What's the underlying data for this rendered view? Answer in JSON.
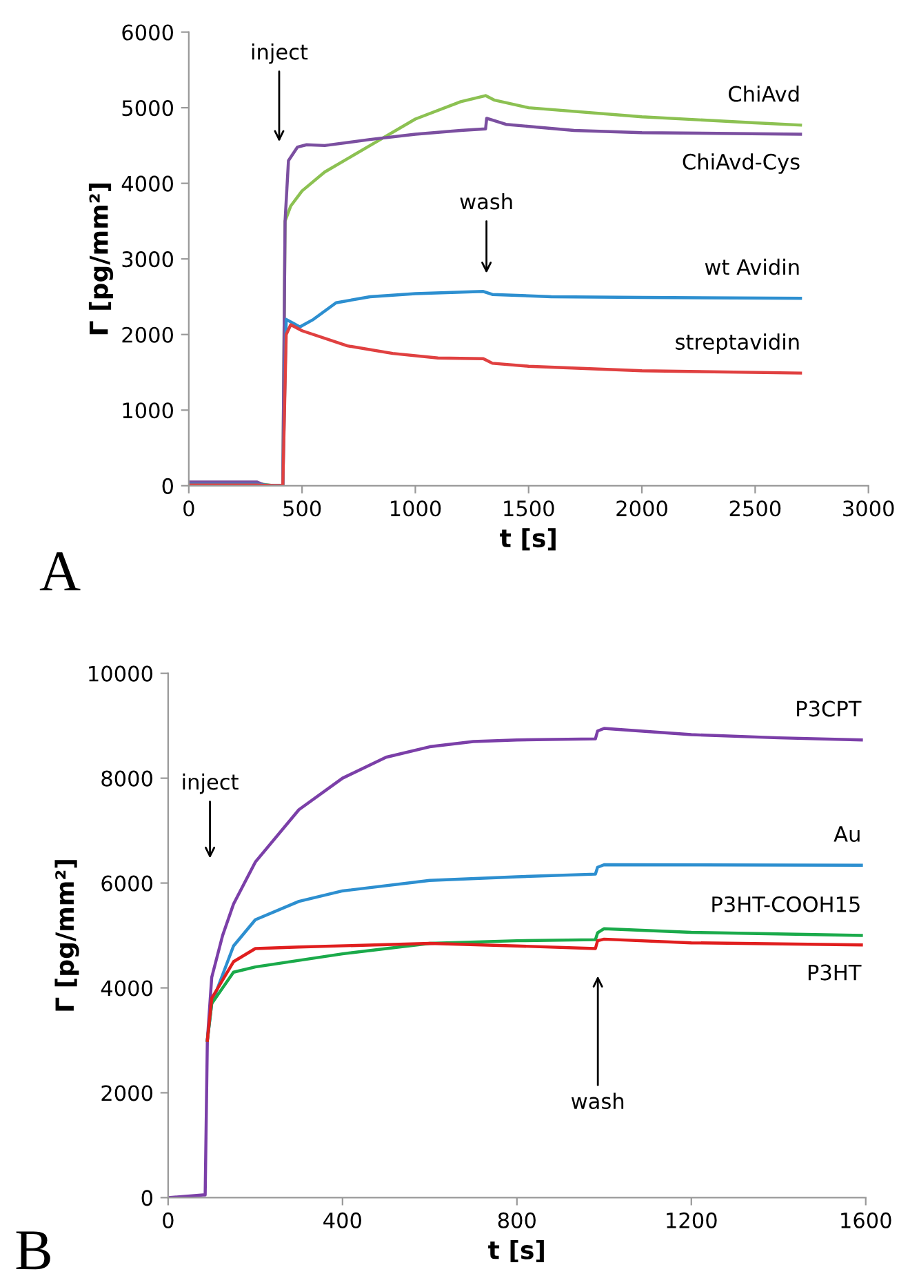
{
  "chart_data": [
    {
      "type": "line",
      "xlabel": "t [s]",
      "ylabel": "Γ [pg/mm²]",
      "xlim": [
        0,
        3000
      ],
      "ylim": [
        0,
        6000
      ],
      "xticks": [
        0,
        500,
        1000,
        1500,
        2000,
        2500,
        3000
      ],
      "yticks": [
        0,
        1000,
        2000,
        3000,
        4000,
        5000,
        6000
      ],
      "grid": false,
      "legend": false,
      "marker": "none",
      "line_style": "solid",
      "series": [
        {
          "name": "ChiAvd",
          "color": "#8cc152",
          "x": [
            0,
            300,
            380,
            415,
            425,
            450,
            500,
            600,
            800,
            1000,
            1200,
            1310,
            1350,
            1500,
            2000,
            2500,
            2700
          ],
          "values": [
            30,
            30,
            0,
            0,
            3500,
            3700,
            3900,
            4150,
            4500,
            4850,
            5080,
            5160,
            5100,
            5000,
            4880,
            4800,
            4770
          ]
        },
        {
          "name": "ChiAvd-Cys",
          "color": "#7b4fa0",
          "x": [
            0,
            300,
            340,
            415,
            425,
            440,
            480,
            520,
            600,
            800,
            1000,
            1200,
            1310,
            1315,
            1400,
            1700,
            2000,
            2700
          ],
          "values": [
            50,
            50,
            0,
            0,
            3500,
            4300,
            4480,
            4510,
            4500,
            4580,
            4650,
            4700,
            4720,
            4860,
            4780,
            4700,
            4670,
            4650
          ]
        },
        {
          "name": "wt Avidin",
          "color": "#2d8fd0",
          "x": [
            0,
            300,
            380,
            415,
            430,
            460,
            490,
            550,
            650,
            800,
            1000,
            1300,
            1340,
            1600,
            2000,
            2700
          ],
          "values": [
            20,
            20,
            0,
            0,
            2200,
            2150,
            2100,
            2200,
            2420,
            2500,
            2540,
            2570,
            2530,
            2500,
            2490,
            2480
          ]
        },
        {
          "name": "streptavidin",
          "color": "#e04040",
          "x": [
            0,
            300,
            380,
            415,
            430,
            450,
            500,
            700,
            900,
            1100,
            1300,
            1320,
            1340,
            1500,
            2000,
            2700
          ],
          "values": [
            10,
            10,
            0,
            0,
            2000,
            2130,
            2050,
            1850,
            1750,
            1690,
            1680,
            1650,
            1620,
            1580,
            1520,
            1490
          ]
        }
      ],
      "annotations": [
        "inject",
        "wash",
        "A"
      ]
    },
    {
      "type": "line",
      "xlabel": "t [s]",
      "ylabel": "Γ [pg/mm²]",
      "xlim": [
        0,
        1600
      ],
      "ylim": [
        0,
        10000
      ],
      "xticks": [
        0,
        400,
        800,
        1200,
        1600
      ],
      "yticks": [
        0,
        2000,
        4000,
        6000,
        8000,
        10000
      ],
      "grid": false,
      "legend": false,
      "marker": "none",
      "line_style": "solid",
      "series": [
        {
          "name": "P3CPT",
          "color": "#7b3fa8",
          "x": [
            0,
            80,
            85,
            90,
            100,
            125,
            150,
            200,
            300,
            400,
            500,
            600,
            700,
            800,
            980,
            985,
            1000,
            1200,
            1400,
            1590
          ],
          "values": [
            0,
            50,
            50,
            3000,
            4200,
            5000,
            5600,
            6400,
            7400,
            8000,
            8400,
            8600,
            8700,
            8730,
            8750,
            8900,
            8950,
            8830,
            8770,
            8730
          ]
        },
        {
          "name": "Au",
          "color": "#2d8fd0",
          "x": [
            90,
            100,
            150,
            200,
            300,
            400,
            600,
            800,
            980,
            985,
            1000,
            1590
          ],
          "values": [
            3000,
            3700,
            4800,
            5300,
            5650,
            5850,
            6050,
            6120,
            6170,
            6300,
            6350,
            6340
          ]
        },
        {
          "name": "P3HT-COOH15",
          "color": "#1aaa4a",
          "x": [
            90,
            100,
            150,
            200,
            400,
            600,
            800,
            980,
            985,
            1000,
            1200,
            1590
          ],
          "values": [
            3000,
            3700,
            4300,
            4400,
            4650,
            4850,
            4900,
            4920,
            5050,
            5130,
            5060,
            5000
          ]
        },
        {
          "name": "P3HT",
          "color": "#e01e1e",
          "x": [
            90,
            100,
            150,
            200,
            300,
            600,
            800,
            980,
            985,
            1000,
            1200,
            1590
          ],
          "values": [
            3000,
            3800,
            4500,
            4750,
            4780,
            4850,
            4800,
            4750,
            4900,
            4930,
            4860,
            4820
          ]
        }
      ],
      "annotations": [
        "inject",
        "wash",
        "B"
      ]
    }
  ]
}
